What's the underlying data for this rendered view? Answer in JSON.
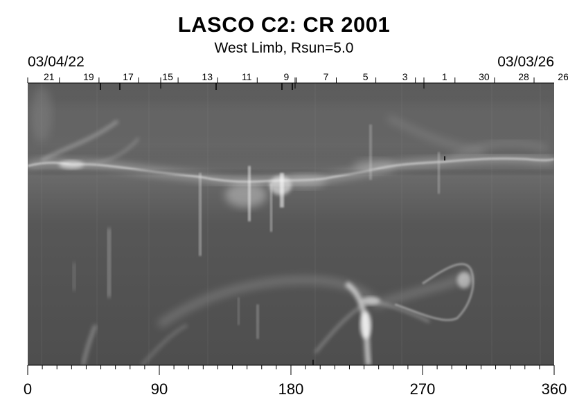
{
  "header": {
    "title": "LASCO C2: CR 2001",
    "subtitle": "West Limb, Rsun=5.0",
    "date_left": "03/04/22",
    "date_right": "03/03/26"
  },
  "top_axis": {
    "labels": [
      "21",
      "19",
      "17",
      "15",
      "13",
      "11",
      "9",
      "7",
      "5",
      "3",
      "1",
      "30",
      "28",
      "26"
    ]
  },
  "bottom_axis": {
    "labels": [
      "0",
      "90",
      "180",
      "270",
      "360"
    ]
  },
  "colors": {
    "background": "#ffffff",
    "plot_base": "#5a5a5a",
    "streamer": "#e6e6e6"
  }
}
